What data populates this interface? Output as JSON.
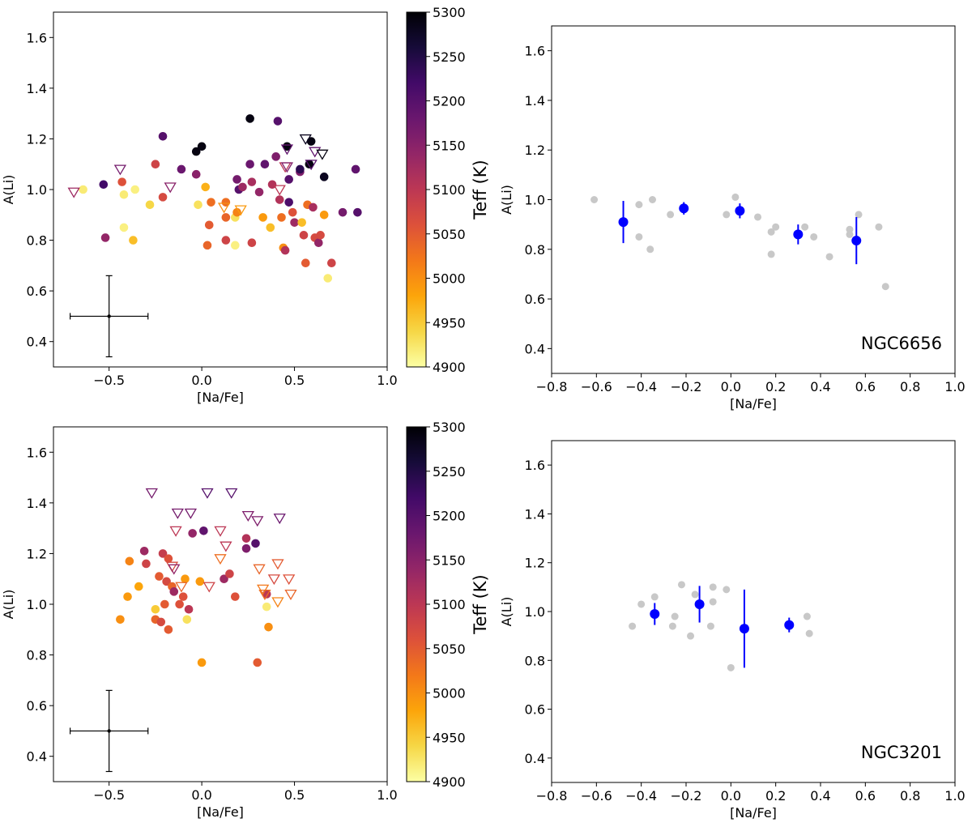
{
  "chart_data": [
    {
      "id": "top-left",
      "type": "scatter",
      "xlabel": "[Na/Fe]",
      "ylabel": "A(Li)",
      "xlim": [
        -0.8,
        1.0
      ],
      "ylim": [
        0.3,
        1.7
      ],
      "xticks": [
        -0.5,
        0.0,
        0.5,
        1.0
      ],
      "xtick_labels": [
        "−0.5",
        "0.0",
        "0.5",
        "1.0"
      ],
      "yticks": [
        0.4,
        0.6,
        0.8,
        1.0,
        1.2,
        1.4,
        1.6
      ],
      "ytick_labels": [
        "0.4",
        "0.6",
        "0.8",
        "1.0",
        "1.2",
        "1.4",
        "1.6"
      ],
      "grid": false,
      "colorbar": {
        "label": "Teff (K)",
        "min": 4900,
        "max": 5300,
        "ticks": [
          4900,
          4950,
          5000,
          5050,
          5100,
          5150,
          5200,
          5250,
          5300
        ],
        "colormap": "inferno_r"
      },
      "error_bar": {
        "x": -0.5,
        "y": 0.5,
        "xerr": 0.21,
        "yerr": 0.16
      },
      "detections": [
        [
          -0.64,
          1.0,
          4920
        ],
        [
          -0.53,
          1.02,
          5220
        ],
        [
          -0.52,
          0.81,
          5140
        ],
        [
          -0.42,
          0.98,
          4920
        ],
        [
          -0.42,
          0.85,
          4915
        ],
        [
          -0.37,
          0.8,
          4960
        ],
        [
          -0.36,
          1.0,
          4915
        ],
        [
          -0.43,
          1.03,
          5060
        ],
        [
          -0.28,
          0.94,
          4940
        ],
        [
          -0.25,
          1.1,
          5080
        ],
        [
          -0.21,
          1.21,
          5200
        ],
        [
          -0.21,
          0.97,
          5070
        ],
        [
          -0.11,
          1.08,
          5180
        ],
        [
          -0.03,
          1.15,
          5290
        ],
        [
          -0.03,
          1.06,
          5150
        ],
        [
          -0.02,
          0.94,
          4930
        ],
        [
          0.0,
          1.17,
          5290
        ],
        [
          0.02,
          1.01,
          4970
        ],
        [
          0.05,
          0.95,
          5030
        ],
        [
          0.04,
          0.86,
          5050
        ],
        [
          0.03,
          0.78,
          5040
        ],
        [
          0.13,
          0.95,
          5030
        ],
        [
          0.13,
          0.89,
          5040
        ],
        [
          0.13,
          0.8,
          5080
        ],
        [
          0.18,
          0.89,
          4930
        ],
        [
          0.18,
          0.78,
          4915
        ],
        [
          0.19,
          0.91,
          5010
        ],
        [
          0.19,
          1.04,
          5170
        ],
        [
          0.2,
          1.0,
          5200
        ],
        [
          0.22,
          1.01,
          5130
        ],
        [
          0.26,
          1.28,
          5290
        ],
        [
          0.26,
          1.1,
          5180
        ],
        [
          0.27,
          1.03,
          5120
        ],
        [
          0.27,
          0.79,
          5080
        ],
        [
          0.31,
          0.99,
          5140
        ],
        [
          0.33,
          0.89,
          4990
        ],
        [
          0.34,
          1.1,
          5190
        ],
        [
          0.37,
          0.85,
          4960
        ],
        [
          0.38,
          1.02,
          5110
        ],
        [
          0.4,
          1.13,
          5160
        ],
        [
          0.41,
          1.27,
          5200
        ],
        [
          0.42,
          0.96,
          5110
        ],
        [
          0.43,
          0.89,
          5030
        ],
        [
          0.44,
          0.77,
          5000
        ],
        [
          0.45,
          0.76,
          5110
        ],
        [
          0.46,
          1.17,
          5290
        ],
        [
          0.47,
          1.04,
          5200
        ],
        [
          0.47,
          0.95,
          5210
        ],
        [
          0.49,
          0.91,
          5060
        ],
        [
          0.5,
          0.87,
          5130
        ],
        [
          0.53,
          1.07,
          5160
        ],
        [
          0.53,
          1.08,
          5240
        ],
        [
          0.54,
          0.87,
          4960
        ],
        [
          0.55,
          0.82,
          5080
        ],
        [
          0.56,
          0.71,
          5050
        ],
        [
          0.57,
          0.94,
          5030
        ],
        [
          0.58,
          1.1,
          5290
        ],
        [
          0.59,
          1.19,
          5290
        ],
        [
          0.6,
          0.93,
          5120
        ],
        [
          0.61,
          0.81,
          5070
        ],
        [
          0.63,
          0.79,
          5140
        ],
        [
          0.64,
          0.82,
          5070
        ],
        [
          0.66,
          0.9,
          4990
        ],
        [
          0.66,
          1.05,
          5280
        ],
        [
          0.68,
          0.65,
          4920
        ],
        [
          0.7,
          0.71,
          5080
        ],
        [
          0.76,
          0.91,
          5170
        ],
        [
          0.83,
          1.08,
          5190
        ],
        [
          0.84,
          0.91,
          5200
        ]
      ],
      "upper_limits": [
        [
          -0.69,
          0.99,
          5130
        ],
        [
          -0.44,
          1.08,
          5170
        ],
        [
          -0.17,
          1.01,
          5150
        ],
        [
          0.12,
          0.93,
          5000
        ],
        [
          0.21,
          0.92,
          4990
        ],
        [
          0.42,
          1.0,
          5100
        ],
        [
          0.45,
          1.09,
          5100
        ],
        [
          0.46,
          1.09,
          5160
        ],
        [
          0.46,
          1.16,
          5190
        ],
        [
          0.56,
          1.2,
          5280
        ],
        [
          0.59,
          1.1,
          5200
        ],
        [
          0.61,
          1.15,
          5190
        ],
        [
          0.65,
          1.14,
          5290
        ]
      ]
    },
    {
      "id": "top-right",
      "type": "scatter",
      "xlabel": "[Na/Fe]",
      "ylabel": "A(Li)",
      "xlim": [
        -0.8,
        1.0
      ],
      "ylim": [
        0.3,
        1.7
      ],
      "xticks": [
        -0.8,
        -0.6,
        -0.4,
        -0.2,
        0.0,
        0.2,
        0.4,
        0.6,
        0.8,
        1.0
      ],
      "xtick_labels": [
        "−0.8",
        "−0.6",
        "−0.4",
        "−0.2",
        "0.0",
        "0.2",
        "0.4",
        "0.6",
        "0.8",
        "1.0"
      ],
      "yticks": [
        0.4,
        0.6,
        0.8,
        1.0,
        1.2,
        1.4,
        1.6
      ],
      "ytick_labels": [
        "0.4",
        "0.6",
        "0.8",
        "1.0",
        "1.2",
        "1.4",
        "1.6"
      ],
      "grid": false,
      "annotation": "NGC6656",
      "gray_points": [
        [
          -0.61,
          1.0
        ],
        [
          -0.41,
          0.98
        ],
        [
          -0.41,
          0.85
        ],
        [
          -0.36,
          0.8
        ],
        [
          -0.35,
          1.0
        ],
        [
          -0.27,
          0.94
        ],
        [
          -0.02,
          0.94
        ],
        [
          0.02,
          1.01
        ],
        [
          0.12,
          0.93
        ],
        [
          0.18,
          0.87
        ],
        [
          0.18,
          0.78
        ],
        [
          0.2,
          0.89
        ],
        [
          0.33,
          0.89
        ],
        [
          0.37,
          0.85
        ],
        [
          0.44,
          0.77
        ],
        [
          0.53,
          0.88
        ],
        [
          0.53,
          0.86
        ],
        [
          0.57,
          0.94
        ],
        [
          0.66,
          0.89
        ],
        [
          0.69,
          0.65
        ]
      ],
      "blue_points": [
        {
          "x": -0.48,
          "y": 0.91,
          "yerr": 0.085
        },
        {
          "x": -0.21,
          "y": 0.965,
          "yerr": 0.025
        },
        {
          "x": 0.04,
          "y": 0.955,
          "yerr": 0.03
        },
        {
          "x": 0.3,
          "y": 0.86,
          "yerr": 0.04
        },
        {
          "x": 0.56,
          "y": 0.835,
          "yerr": 0.095
        }
      ]
    },
    {
      "id": "bottom-left",
      "type": "scatter",
      "xlabel": "[Na/Fe]",
      "ylabel": "A(Li)",
      "xlim": [
        -0.8,
        1.0
      ],
      "ylim": [
        0.3,
        1.7
      ],
      "xticks": [
        -0.5,
        0.0,
        0.5,
        1.0
      ],
      "xtick_labels": [
        "−0.5",
        "0.0",
        "0.5",
        "1.0"
      ],
      "yticks": [
        0.4,
        0.6,
        0.8,
        1.0,
        1.2,
        1.4,
        1.6
      ],
      "ytick_labels": [
        "0.4",
        "0.6",
        "0.8",
        "1.0",
        "1.2",
        "1.4",
        "1.6"
      ],
      "grid": false,
      "colorbar": {
        "label": "Teff (K)",
        "min": 4900,
        "max": 5300,
        "ticks": [
          4900,
          4950,
          5000,
          5050,
          5100,
          5150,
          5200,
          5250,
          5300
        ],
        "colormap": "inferno_r"
      },
      "error_bar": {
        "x": -0.5,
        "y": 0.5,
        "xerr": 0.21,
        "yerr": 0.16
      },
      "detections": [
        [
          -0.44,
          0.94,
          5000
        ],
        [
          -0.4,
          1.03,
          4990
        ],
        [
          -0.39,
          1.17,
          5010
        ],
        [
          -0.34,
          1.07,
          4980
        ],
        [
          -0.31,
          1.21,
          5130
        ],
        [
          -0.3,
          1.16,
          5080
        ],
        [
          -0.25,
          0.98,
          4950
        ],
        [
          -0.25,
          0.94,
          5040
        ],
        [
          -0.23,
          1.11,
          5050
        ],
        [
          -0.22,
          0.93,
          5070
        ],
        [
          -0.21,
          1.2,
          5090
        ],
        [
          -0.2,
          1.0,
          5050
        ],
        [
          -0.19,
          1.09,
          5070
        ],
        [
          -0.18,
          0.9,
          5050
        ],
        [
          -0.18,
          1.18,
          5060
        ],
        [
          -0.16,
          1.07,
          5040
        ],
        [
          -0.15,
          1.05,
          5130
        ],
        [
          -0.12,
          1.0,
          5060
        ],
        [
          -0.1,
          1.03,
          5060
        ],
        [
          -0.09,
          1.1,
          4990
        ],
        [
          -0.08,
          0.94,
          4930
        ],
        [
          -0.07,
          0.98,
          5100
        ],
        [
          -0.05,
          1.28,
          5140
        ],
        [
          -0.01,
          1.09,
          4990
        ],
        [
          0.0,
          0.77,
          4990
        ],
        [
          0.01,
          1.29,
          5190
        ],
        [
          0.12,
          1.1,
          5130
        ],
        [
          0.15,
          1.12,
          5080
        ],
        [
          0.18,
          1.03,
          5060
        ],
        [
          0.24,
          1.22,
          5160
        ],
        [
          0.24,
          1.26,
          5110
        ],
        [
          0.29,
          1.24,
          5200
        ],
        [
          0.3,
          0.77,
          5050
        ],
        [
          0.35,
          0.99,
          4920
        ],
        [
          0.35,
          1.04,
          5100
        ],
        [
          0.36,
          0.91,
          5000
        ]
      ],
      "upper_limits": [
        [
          -0.27,
          1.44,
          5170
        ],
        [
          -0.16,
          1.15,
          5070
        ],
        [
          -0.15,
          1.14,
          5140
        ],
        [
          -0.14,
          1.29,
          5100
        ],
        [
          -0.13,
          1.36,
          5170
        ],
        [
          -0.11,
          1.07,
          5040
        ],
        [
          -0.06,
          1.36,
          5170
        ],
        [
          0.03,
          1.44,
          5200
        ],
        [
          0.04,
          1.07,
          5080
        ],
        [
          0.1,
          1.18,
          5030
        ],
        [
          0.1,
          1.29,
          5100
        ],
        [
          0.13,
          1.23,
          5100
        ],
        [
          0.16,
          1.44,
          5200
        ],
        [
          0.25,
          1.35,
          5160
        ],
        [
          0.3,
          1.33,
          5160
        ],
        [
          0.31,
          1.14,
          5040
        ],
        [
          0.33,
          1.06,
          5020
        ],
        [
          0.34,
          1.04,
          5030
        ],
        [
          0.39,
          1.1,
          5070
        ],
        [
          0.41,
          1.16,
          5050
        ],
        [
          0.41,
          1.01,
          5010
        ],
        [
          0.42,
          1.34,
          5180
        ],
        [
          0.47,
          1.1,
          5060
        ],
        [
          0.48,
          1.04,
          5040
        ]
      ]
    },
    {
      "id": "bottom-right",
      "type": "scatter",
      "xlabel": "[Na/Fe]",
      "ylabel": "A(Li)",
      "xlim": [
        -0.8,
        1.0
      ],
      "ylim": [
        0.3,
        1.7
      ],
      "xticks": [
        -0.8,
        -0.6,
        -0.4,
        -0.2,
        0.0,
        0.2,
        0.4,
        0.6,
        0.8,
        1.0
      ],
      "xtick_labels": [
        "−0.8",
        "−0.6",
        "−0.4",
        "−0.2",
        "0.0",
        "0.2",
        "0.4",
        "0.6",
        "0.8",
        "1.0"
      ],
      "yticks": [
        0.4,
        0.6,
        0.8,
        1.0,
        1.2,
        1.4,
        1.6
      ],
      "ytick_labels": [
        "0.4",
        "0.6",
        "0.8",
        "1.0",
        "1.2",
        "1.4",
        "1.6"
      ],
      "grid": false,
      "annotation": "NGC3201",
      "gray_points": [
        [
          -0.44,
          0.94
        ],
        [
          -0.4,
          1.03
        ],
        [
          -0.34,
          1.06
        ],
        [
          -0.26,
          0.94
        ],
        [
          -0.25,
          0.98
        ],
        [
          -0.22,
          1.11
        ],
        [
          -0.18,
          0.9
        ],
        [
          -0.16,
          1.07
        ],
        [
          -0.09,
          0.94
        ],
        [
          -0.08,
          1.1
        ],
        [
          -0.08,
          1.04
        ],
        [
          -0.02,
          1.09
        ],
        [
          0.0,
          0.77
        ],
        [
          0.34,
          0.98
        ],
        [
          0.35,
          0.91
        ]
      ],
      "blue_points": [
        {
          "x": -0.34,
          "y": 0.99,
          "yerr": 0.045
        },
        {
          "x": -0.14,
          "y": 1.03,
          "yerr": 0.075
        },
        {
          "x": 0.06,
          "y": 0.93,
          "yerr": 0.16
        },
        {
          "x": 0.26,
          "y": 0.945,
          "yerr": 0.03
        }
      ]
    }
  ]
}
